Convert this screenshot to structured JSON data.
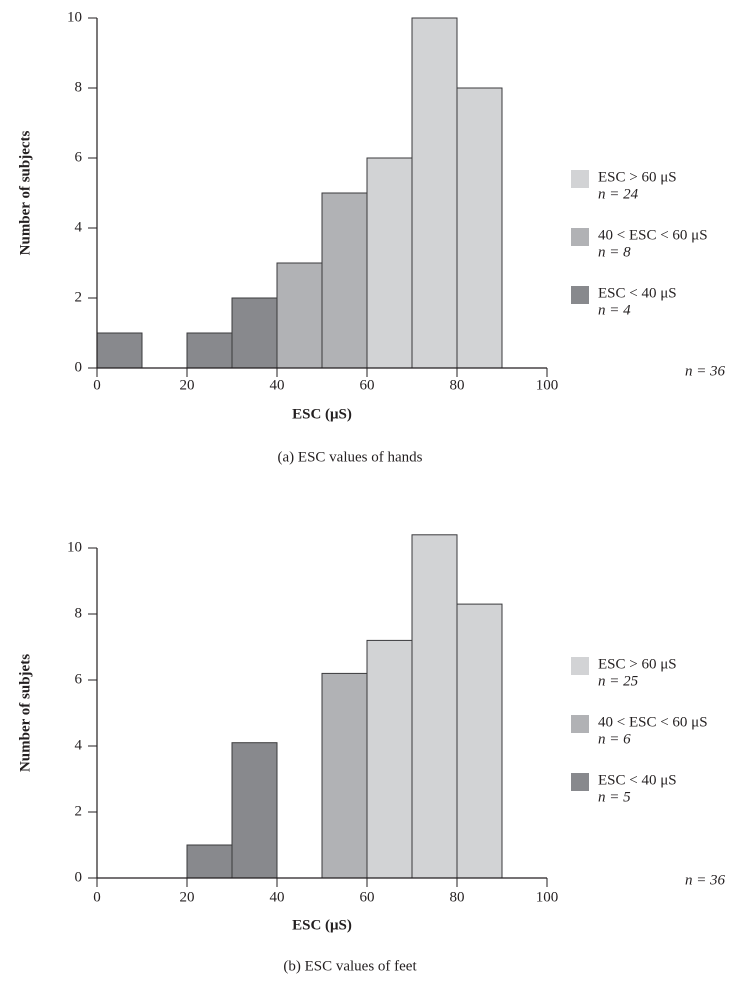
{
  "chart_data": [
    {
      "type": "bar",
      "caption": "(a)  ESC values of hands",
      "xlabel": "ESC (μS)",
      "ylabel": "Number of subjects",
      "xlim": [
        0,
        100
      ],
      "ylim": [
        0,
        10
      ],
      "xticks": [
        "0",
        "20",
        "40",
        "60",
        "80",
        "100"
      ],
      "yticks": [
        "0",
        "2",
        "4",
        "6",
        "8",
        "10"
      ],
      "total_label": "n = 36",
      "legend_position": "right",
      "series": [
        {
          "name": "ESC > 60 μS",
          "n_label": "n = 24",
          "color": "#d2d3d5"
        },
        {
          "name": "40 < ESC < 60 μS",
          "n_label": "n = 8",
          "color": "#b1b2b5"
        },
        {
          "name": "ESC < 40 μS",
          "n_label": "n = 4",
          "color": "#88898d"
        }
      ],
      "bins": [
        {
          "x0": 0,
          "x1": 10,
          "value": 1,
          "series": 2
        },
        {
          "x0": 10,
          "x1": 20,
          "value": 0,
          "series": 2
        },
        {
          "x0": 20,
          "x1": 30,
          "value": 1,
          "series": 2
        },
        {
          "x0": 30,
          "x1": 40,
          "value": 2,
          "series": 2
        },
        {
          "x0": 40,
          "x1": 50,
          "value": 3,
          "series": 1
        },
        {
          "x0": 50,
          "x1": 60,
          "value": 5,
          "series": 1
        },
        {
          "x0": 60,
          "x1": 70,
          "value": 6,
          "series": 0
        },
        {
          "x0": 70,
          "x1": 80,
          "value": 10,
          "series": 0
        },
        {
          "x0": 80,
          "x1": 90,
          "value": 8,
          "series": 0
        }
      ]
    },
    {
      "type": "bar",
      "caption": "(b)  ESC values of feet",
      "xlabel": "ESC (μS)",
      "ylabel": "Number of subjets",
      "xlim": [
        0,
        100
      ],
      "ylim": [
        0,
        10
      ],
      "xticks": [
        "0",
        "20",
        "40",
        "60",
        "80",
        "100"
      ],
      "yticks": [
        "0",
        "2",
        "4",
        "6",
        "8",
        "10"
      ],
      "total_label": "n = 36",
      "legend_position": "right",
      "series": [
        {
          "name": "ESC > 60 μS",
          "n_label": "n = 25",
          "color": "#d2d3d5"
        },
        {
          "name": "40 < ESC < 60 μS",
          "n_label": "n = 6",
          "color": "#b1b2b5"
        },
        {
          "name": "ESC < 40 μS",
          "n_label": "n = 5",
          "color": "#88898d"
        }
      ],
      "bins": [
        {
          "x0": 20,
          "x1": 30,
          "value": 1,
          "series": 2
        },
        {
          "x0": 30,
          "x1": 40,
          "value": 4.1,
          "series": 2
        },
        {
          "x0": 40,
          "x1": 50,
          "value": 0,
          "series": 1
        },
        {
          "x0": 50,
          "x1": 60,
          "value": 6.2,
          "series": 1
        },
        {
          "x0": 60,
          "x1": 70,
          "value": 7.2,
          "series": 0
        },
        {
          "x0": 70,
          "x1": 80,
          "value": 10.4,
          "series": 0
        },
        {
          "x0": 80,
          "x1": 90,
          "value": 8.3,
          "series": 0
        }
      ]
    }
  ]
}
